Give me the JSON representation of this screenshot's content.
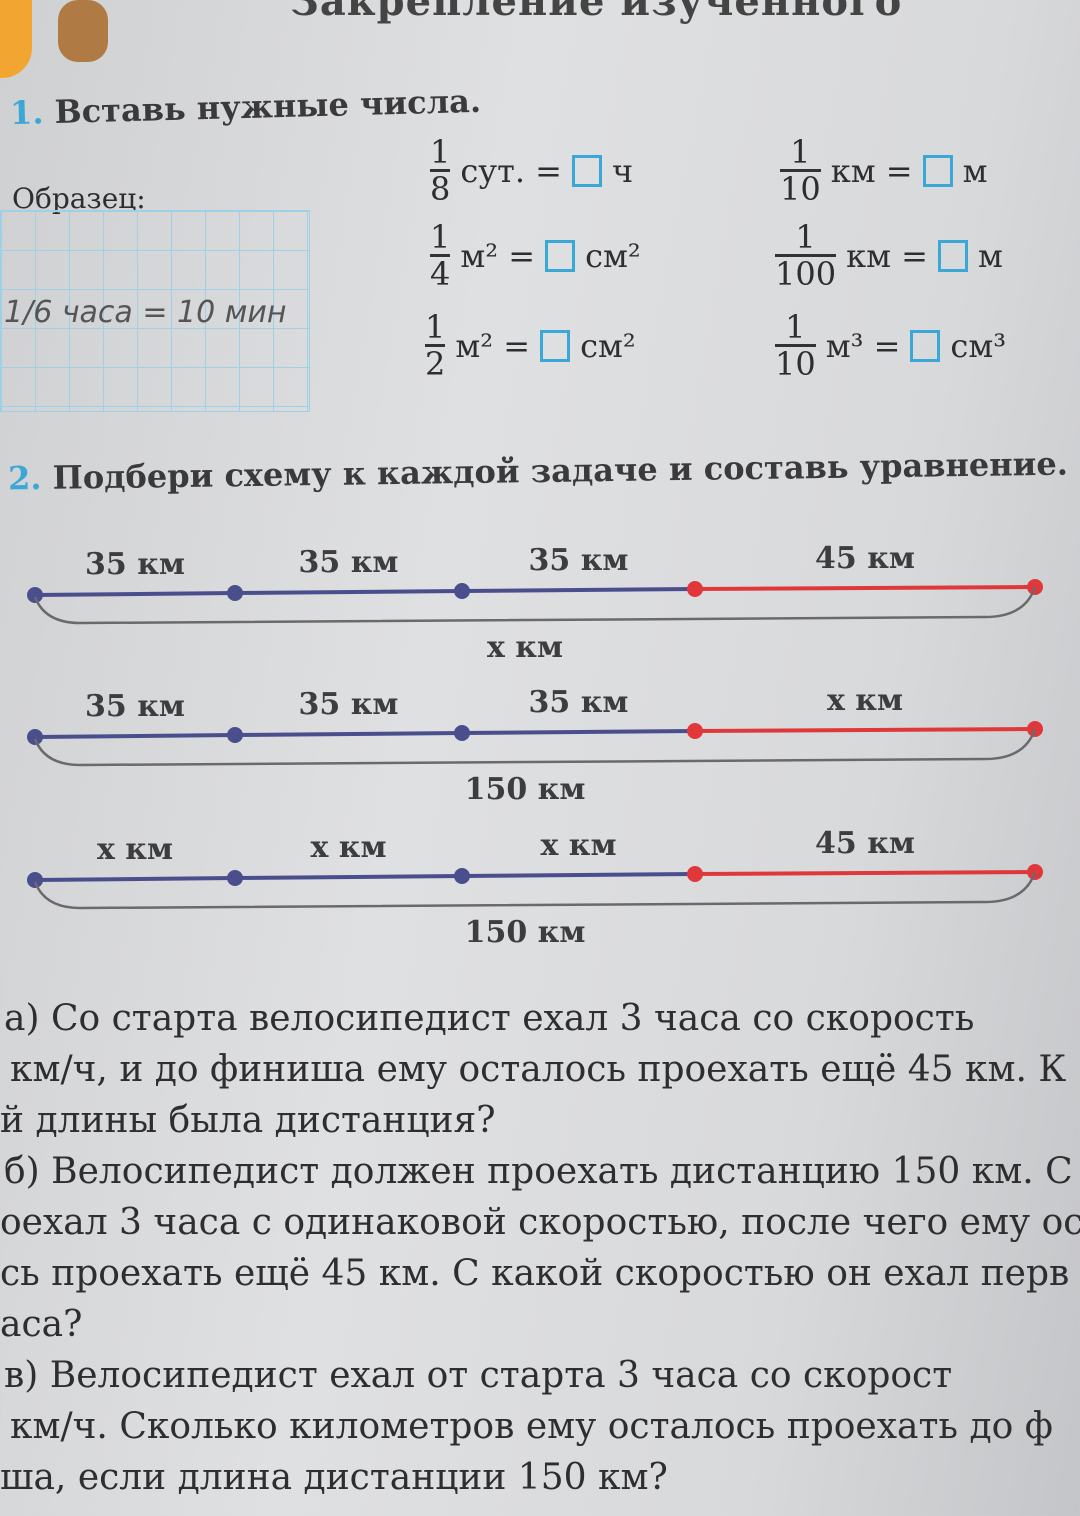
{
  "header": {
    "title": "Закрепление изученного"
  },
  "task1": {
    "number": "1.",
    "text": "Вставь нужные числа.",
    "sample_label": "Образец:",
    "sample_handwritten": "1/6 часа = 10 мин",
    "items": [
      {
        "num": "1",
        "den": "8",
        "unit_left": "сут. =",
        "unit_right": "ч"
      },
      {
        "num": "1",
        "den": "10",
        "unit_left": "км =",
        "unit_right": "м"
      },
      {
        "num": "1",
        "den": "4",
        "unit_left": "м² =",
        "unit_right": "см²"
      },
      {
        "num": "1",
        "den": "100",
        "unit_left": "км =",
        "unit_right": "м"
      },
      {
        "num": "1",
        "den": "2",
        "unit_left": "м² =",
        "unit_right": "см²"
      },
      {
        "num": "1",
        "den": "10",
        "unit_left": "м³ =",
        "unit_right": "см³"
      }
    ]
  },
  "task2": {
    "number": "2.",
    "text": "Подбери схему к каждой задаче и составь уравнение.",
    "colors": {
      "blue_segment": "#4a4e8c",
      "red_segment": "#e0383a"
    },
    "schemes": [
      {
        "segments": [
          "35 км",
          "35 км",
          "35 км",
          "45 км"
        ],
        "total": "x км"
      },
      {
        "segments": [
          "35 км",
          "35 км",
          "35 км",
          "x км"
        ],
        "total": "150 км"
      },
      {
        "segments": [
          "x км",
          "x км",
          "x км",
          "45 км"
        ],
        "total": "150 км"
      }
    ],
    "problems": [
      [
        "а) Со старта велосипедист ехал 3 часа со скорость",
        "км/ч, и до финиша ему осталось проехать ещё 45 км. К",
        "й длины была дистанция?"
      ],
      [
        "б) Велосипедист должен проехать дистанцию 150 км. С",
        "оехал 3 часа с одинаковой скоростью, после чего ему ост",
        "сь проехать ещё 45 км. С какой скоростью он ехал перв",
        "аса?"
      ],
      [
        "в) Велосипедист ехал от старта 3 часа со скорост",
        "км/ч. Сколько километров ему осталось проехать до ф",
        "ша, если длина дистанции 150 км?"
      ]
    ]
  }
}
